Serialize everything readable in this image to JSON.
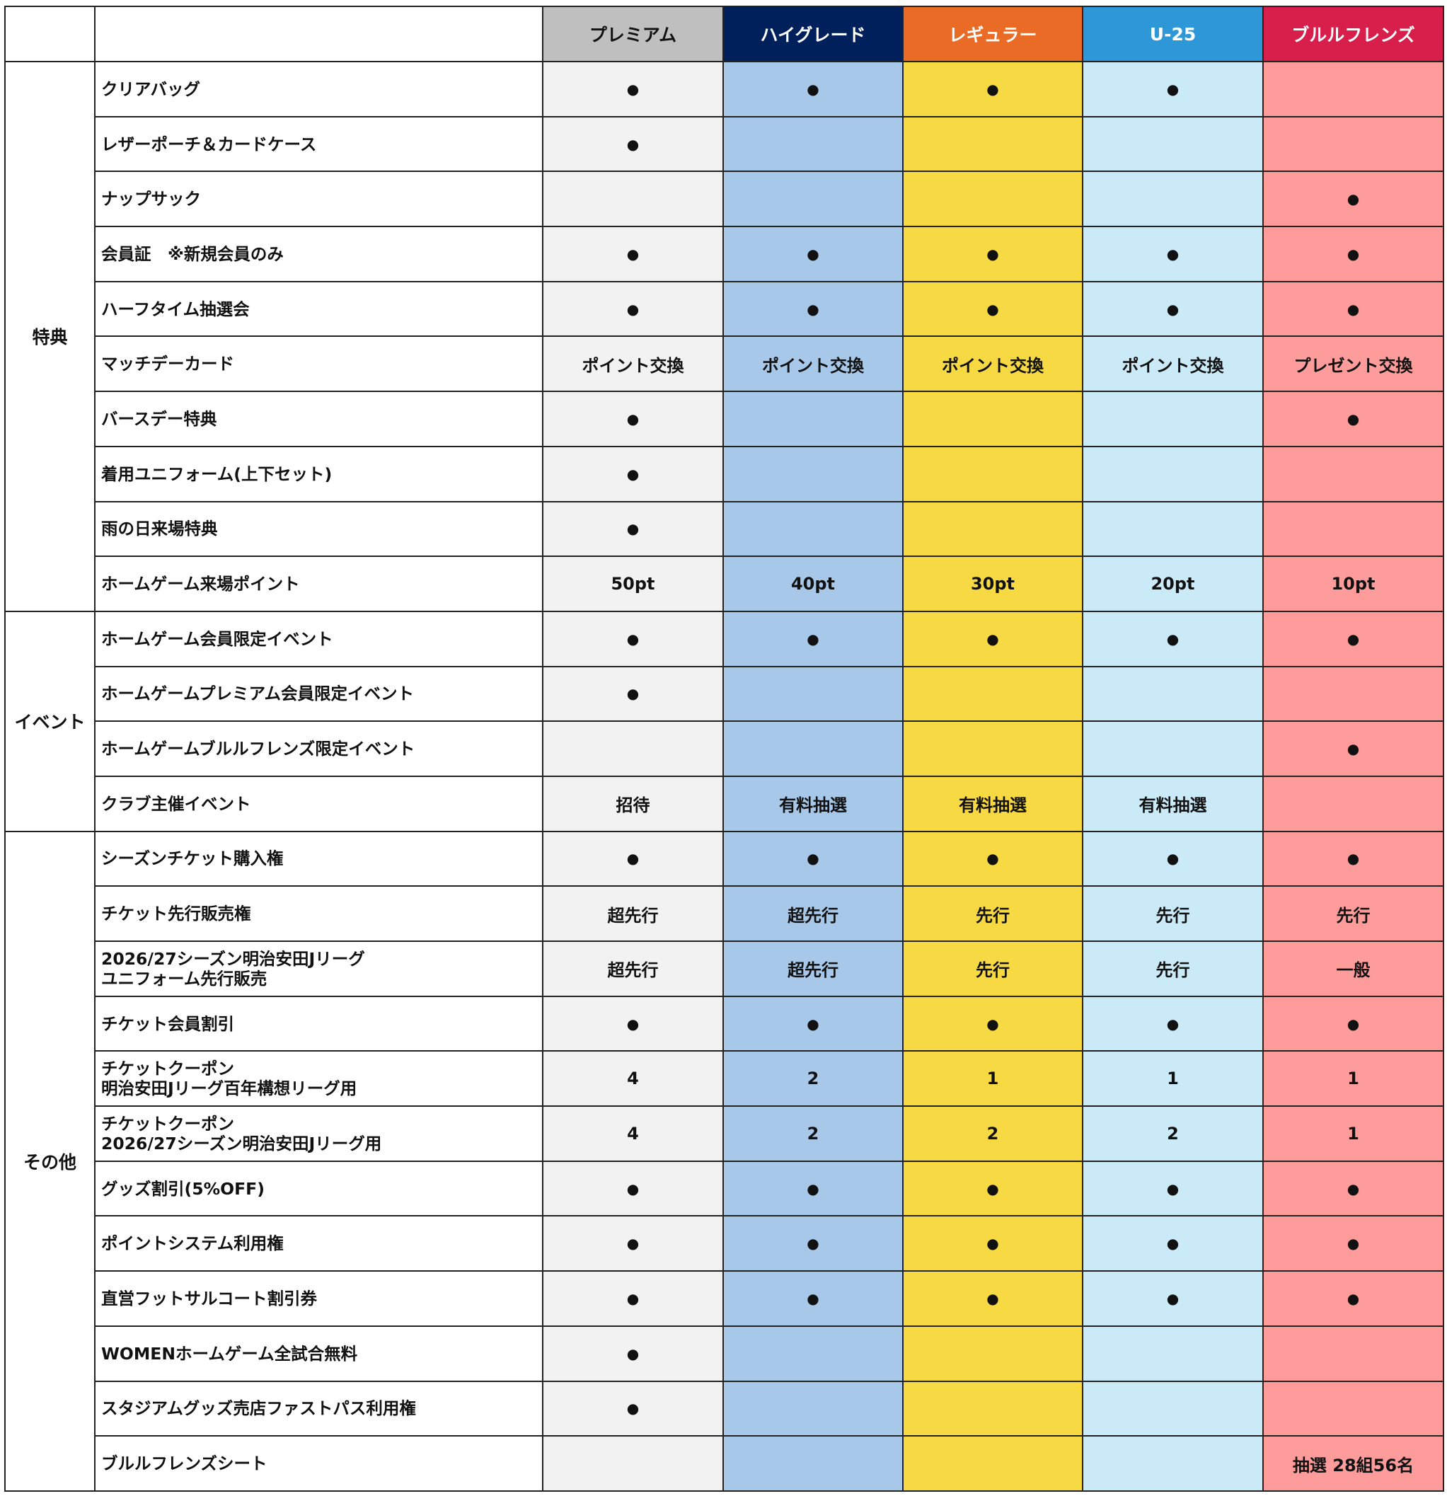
{
  "tiers": [
    {
      "name": "プレミアム",
      "header_bg": "#bfbfbf",
      "header_fg": "#111111",
      "cell_bg": "#f2f2f2"
    },
    {
      "name": "ハイグレード",
      "header_bg": "#00205b",
      "header_fg": "#ffffff",
      "cell_bg": "#a8c8ea"
    },
    {
      "name": "レギュラー",
      "header_bg": "#e96b25",
      "header_fg": "#ffffff",
      "cell_bg": "#f7d944"
    },
    {
      "name": "U-25",
      "header_bg": "#2e97d8",
      "header_fg": "#ffffff",
      "cell_bg": "#cbeaf8"
    },
    {
      "name": "ブルルフレンズ",
      "header_bg": "#d81e4a",
      "header_fg": "#ffffff",
      "cell_bg": "#fe9c9c"
    }
  ],
  "groups": [
    {
      "name": "特典",
      "rows": [
        {
          "label": "クリアバッグ",
          "values": [
            "●",
            "●",
            "●",
            "●",
            ""
          ]
        },
        {
          "label": "レザーポーチ＆カードケース",
          "values": [
            "●",
            "",
            "",
            "",
            ""
          ]
        },
        {
          "label": "ナップサック",
          "values": [
            "",
            "",
            "",
            "",
            "●"
          ]
        },
        {
          "label": "会員証　※新規会員のみ",
          "values": [
            "●",
            "●",
            "●",
            "●",
            "●"
          ]
        },
        {
          "label": "ハーフタイム抽選会",
          "values": [
            "●",
            "●",
            "●",
            "●",
            "●"
          ]
        },
        {
          "label": "マッチデーカード",
          "values": [
            "ポイント交換",
            "ポイント交換",
            "ポイント交換",
            "ポイント交換",
            "プレゼント交換"
          ]
        },
        {
          "label": "バースデー特典",
          "values": [
            "●",
            "",
            "",
            "",
            "●"
          ]
        },
        {
          "label": "着用ユニフォーム(上下セット)",
          "values": [
            "●",
            "",
            "",
            "",
            ""
          ]
        },
        {
          "label": "雨の日来場特典",
          "values": [
            "●",
            "",
            "",
            "",
            ""
          ]
        },
        {
          "label": "ホームゲーム来場ポイント",
          "values": [
            "50pt",
            "40pt",
            "30pt",
            "20pt",
            "10pt"
          ]
        }
      ]
    },
    {
      "name": "イベント",
      "rows": [
        {
          "label": "ホームゲーム会員限定イベント",
          "values": [
            "●",
            "●",
            "●",
            "●",
            "●"
          ]
        },
        {
          "label": "ホームゲームプレミアム会員限定イベント",
          "values": [
            "●",
            "",
            "",
            "",
            ""
          ]
        },
        {
          "label": "ホームゲームブルルフレンズ限定イベント",
          "values": [
            "",
            "",
            "",
            "",
            "●"
          ]
        },
        {
          "label": "クラブ主催イベント",
          "values": [
            "招待",
            "有料抽選",
            "有料抽選",
            "有料抽選",
            ""
          ]
        }
      ]
    },
    {
      "name": "その他",
      "rows": [
        {
          "label": "シーズンチケット購入権",
          "values": [
            "●",
            "●",
            "●",
            "●",
            "●"
          ]
        },
        {
          "label": "チケット先行販売権",
          "values": [
            "超先行",
            "超先行",
            "先行",
            "先行",
            "先行"
          ]
        },
        {
          "label": "2026/27シーズン明治安田Jリーグ\nユニフォーム先行販売",
          "values": [
            "超先行",
            "超先行",
            "先行",
            "先行",
            "一般"
          ]
        },
        {
          "label": "チケット会員割引",
          "values": [
            "●",
            "●",
            "●",
            "●",
            "●"
          ]
        },
        {
          "label": "チケットクーポン\n明治安田Jリーグ百年構想リーグ用",
          "values": [
            "4",
            "2",
            "1",
            "1",
            "1"
          ]
        },
        {
          "label": "チケットクーポン\n2026/27シーズン明治安田Jリーグ用",
          "values": [
            "4",
            "2",
            "2",
            "2",
            "1"
          ]
        },
        {
          "label": "グッズ割引(5%OFF)",
          "values": [
            "●",
            "●",
            "●",
            "●",
            "●"
          ]
        },
        {
          "label": "ポイントシステム利用権",
          "values": [
            "●",
            "●",
            "●",
            "●",
            "●"
          ]
        },
        {
          "label": "直営フットサルコート割引券",
          "values": [
            "●",
            "●",
            "●",
            "●",
            "●"
          ]
        },
        {
          "label": "WOMENホームゲーム全試合無料",
          "values": [
            "●",
            "",
            "",
            "",
            ""
          ]
        },
        {
          "label": "スタジアムグッズ売店ファストパス利用権",
          "values": [
            "●",
            "",
            "",
            "",
            ""
          ]
        },
        {
          "label": "ブルルフレンズシート",
          "values": [
            "",
            "",
            "",
            "",
            "抽選 28組56名"
          ]
        }
      ]
    }
  ]
}
